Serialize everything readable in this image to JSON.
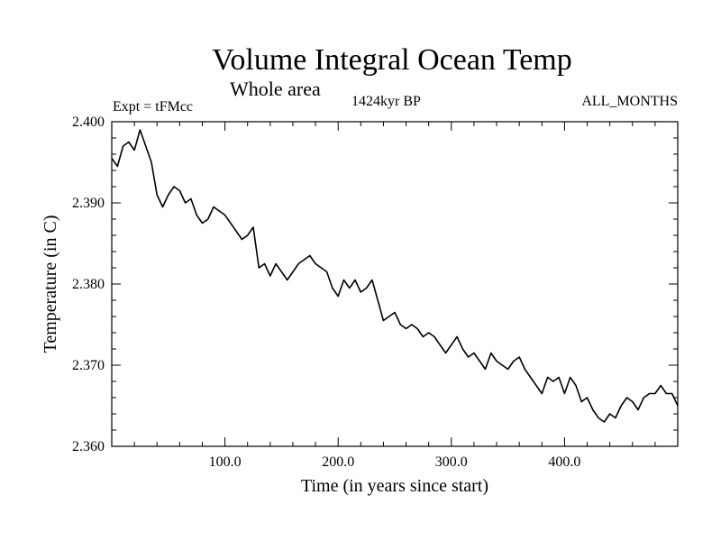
{
  "chart_data": {
    "type": "line",
    "title": "Volume Integral Ocean Temp",
    "subtitle": "Whole area",
    "left_label": "Expt = tFMcc",
    "center_label": "1424kyr BP",
    "right_label": "ALL_MONTHS",
    "xlabel": "Time (in years since start)",
    "ylabel": "Temperature (in C)",
    "xlim": [
      0,
      500
    ],
    "ylim": [
      2.36,
      2.4
    ],
    "xticks": [
      100,
      200,
      300,
      400
    ],
    "xtick_labels": [
      "100.0",
      "200.0",
      "300.0",
      "400.0"
    ],
    "yticks": [
      2.36,
      2.37,
      2.38,
      2.39,
      2.4
    ],
    "ytick_labels": [
      "2.360",
      "2.370",
      "2.380",
      "2.390",
      "2.400"
    ],
    "grid": false,
    "series": [
      {
        "name": "Volume Integral Ocean Temp",
        "color": "#000000",
        "x": [
          0,
          5,
          10,
          15,
          20,
          25,
          30,
          35,
          40,
          45,
          50,
          55,
          60,
          65,
          70,
          75,
          80,
          85,
          90,
          95,
          100,
          105,
          110,
          115,
          120,
          125,
          130,
          135,
          140,
          145,
          150,
          155,
          160,
          165,
          170,
          175,
          180,
          185,
          190,
          195,
          200,
          205,
          210,
          215,
          220,
          225,
          230,
          235,
          240,
          245,
          250,
          255,
          260,
          265,
          270,
          275,
          280,
          285,
          290,
          295,
          300,
          305,
          310,
          315,
          320,
          325,
          330,
          335,
          340,
          345,
          350,
          355,
          360,
          365,
          370,
          375,
          380,
          385,
          390,
          395,
          400,
          405,
          410,
          415,
          420,
          425,
          430,
          435,
          440,
          445,
          450,
          455,
          460,
          465,
          470,
          475,
          480,
          485,
          490,
          495,
          500
        ],
        "y": [
          2.3955,
          2.3945,
          2.397,
          2.3975,
          2.3965,
          2.399,
          2.397,
          2.395,
          2.391,
          2.3895,
          2.391,
          2.392,
          2.3915,
          2.39,
          2.3905,
          2.3885,
          2.3875,
          2.388,
          2.3895,
          2.389,
          2.3885,
          2.3875,
          2.3865,
          2.3855,
          2.386,
          2.387,
          2.382,
          2.3825,
          2.381,
          2.3825,
          2.3815,
          2.3805,
          2.3815,
          2.3825,
          2.383,
          2.3835,
          2.3825,
          2.382,
          2.3815,
          2.3795,
          2.3785,
          2.3805,
          2.3795,
          2.3805,
          2.379,
          2.3795,
          2.3805,
          2.378,
          2.3755,
          2.376,
          2.3765,
          2.375,
          2.3745,
          2.375,
          2.3745,
          2.3735,
          2.374,
          2.3735,
          2.3725,
          2.3715,
          2.3725,
          2.3735,
          2.372,
          2.371,
          2.3715,
          2.3705,
          2.3695,
          2.3715,
          2.3705,
          2.37,
          2.3695,
          2.3705,
          2.371,
          2.3695,
          2.3685,
          2.3675,
          2.3665,
          2.3685,
          2.368,
          2.3685,
          2.3665,
          2.3685,
          2.3675,
          2.3655,
          2.366,
          2.3645,
          2.3635,
          2.363,
          2.364,
          2.3635,
          2.365,
          2.366,
          2.3655,
          2.3645,
          2.366,
          2.3665,
          2.3665,
          2.3675,
          2.3665,
          2.3665,
          2.365
        ]
      }
    ]
  }
}
